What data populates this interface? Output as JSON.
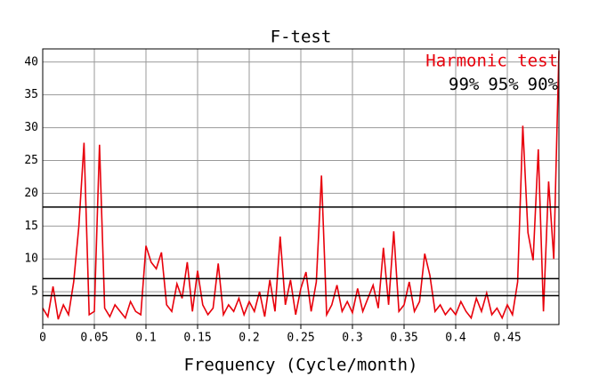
{
  "chart_data": {
    "type": "line",
    "title": "F-test",
    "xlabel": "Frequency (Cycle/month)",
    "annotation": "Harmonic test",
    "reference_lines": [
      {
        "label": "99%",
        "value": 17.9
      },
      {
        "label": "95%",
        "value": 7
      },
      {
        "label": "90%",
        "value": 4.4
      }
    ],
    "xlim": [
      0,
      0.5
    ],
    "ylim": [
      0,
      42
    ],
    "xticks": [
      0,
      0.05,
      0.1,
      0.15,
      0.2,
      0.25,
      0.3,
      0.35,
      0.4,
      0.45
    ],
    "yticks": [
      5,
      10,
      15,
      20,
      25,
      30,
      35,
      40
    ],
    "grid": true,
    "x": [
      0,
      0.005,
      0.01,
      0.015,
      0.02,
      0.025,
      0.03,
      0.035,
      0.04,
      0.045,
      0.05,
      0.055,
      0.06,
      0.065,
      0.07,
      0.075,
      0.08,
      0.085,
      0.09,
      0.095,
      0.1,
      0.105,
      0.11,
      0.115,
      0.12,
      0.125,
      0.13,
      0.135,
      0.14,
      0.145,
      0.15,
      0.155,
      0.16,
      0.165,
      0.17,
      0.175,
      0.18,
      0.185,
      0.19,
      0.195,
      0.2,
      0.205,
      0.21,
      0.215,
      0.22,
      0.225,
      0.23,
      0.235,
      0.24,
      0.245,
      0.25,
      0.255,
      0.26,
      0.265,
      0.27,
      0.275,
      0.28,
      0.285,
      0.29,
      0.295,
      0.3,
      0.305,
      0.31,
      0.315,
      0.32,
      0.325,
      0.33,
      0.335,
      0.34,
      0.345,
      0.35,
      0.355,
      0.36,
      0.365,
      0.37,
      0.375,
      0.38,
      0.385,
      0.39,
      0.395,
      0.4,
      0.405,
      0.41,
      0.415,
      0.42,
      0.425,
      0.43,
      0.435,
      0.44,
      0.445,
      0.45,
      0.455,
      0.46,
      0.465,
      0.47,
      0.475,
      0.48,
      0.485,
      0.49,
      0.495,
      0.5
    ],
    "series": [
      {
        "name": "F-test",
        "color": "#e8000b",
        "values": [
          2.5,
          1.2,
          5.8,
          0.8,
          3,
          1.5,
          6.5,
          15,
          27.7,
          1.5,
          2,
          27.4,
          2.5,
          1.2,
          3,
          2,
          1,
          3.5,
          2,
          1.5,
          12,
          9.5,
          8.5,
          11,
          3,
          2,
          6.2,
          4,
          9.5,
          2,
          8.2,
          3,
          1.5,
          2.5,
          9.3,
          1.5,
          3,
          2,
          4,
          1.5,
          3.5,
          2,
          5,
          1.2,
          6.8,
          2,
          13.4,
          3,
          6.8,
          1.5,
          5.5,
          8,
          2,
          6.5,
          22.7,
          1.5,
          3,
          6,
          2,
          3.5,
          1.8,
          5.5,
          2,
          4,
          6,
          2.5,
          11.7,
          3,
          14.2,
          2,
          3,
          6.5,
          2,
          3.5,
          10.8,
          7.5,
          2,
          3,
          1.5,
          2.5,
          1.5,
          3.5,
          2,
          1,
          4,
          2,
          4.8,
          1.5,
          2.5,
          1,
          3,
          1.5,
          6.5,
          30.3,
          14,
          9.8,
          26.7,
          2,
          21.8,
          10,
          41.7
        ]
      }
    ]
  }
}
